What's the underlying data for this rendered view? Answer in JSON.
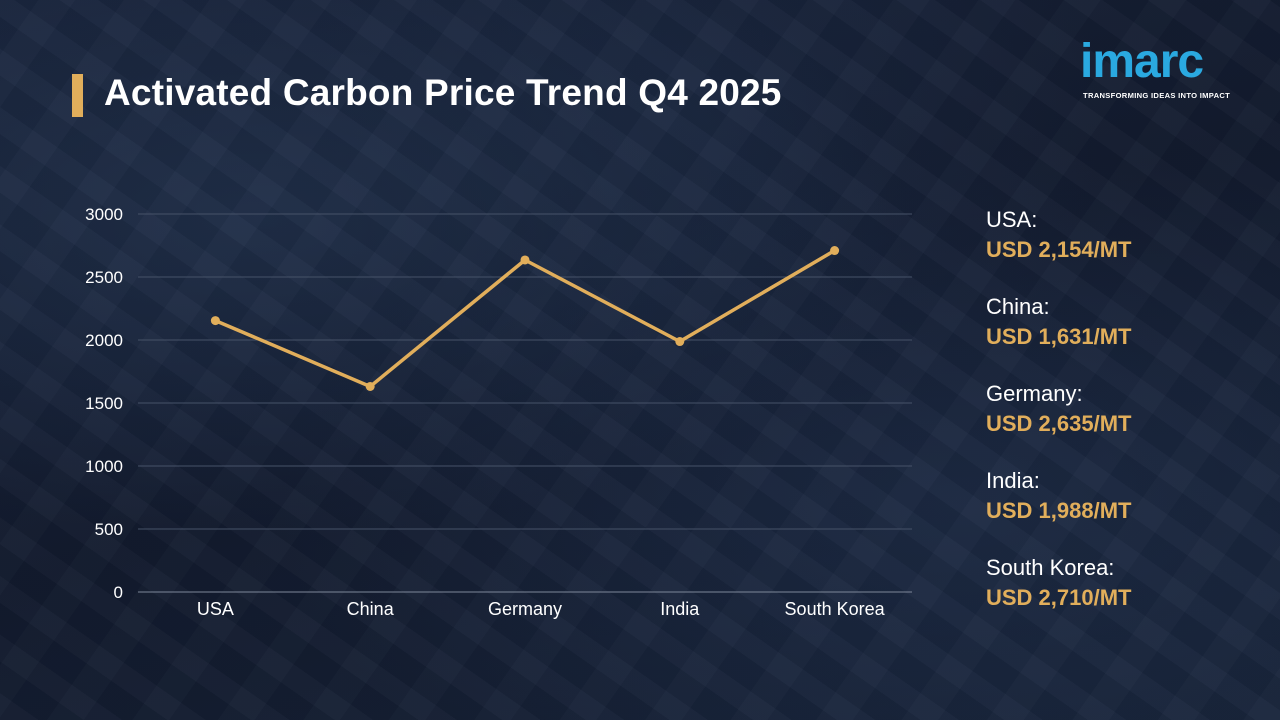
{
  "header": {
    "title": "Activated Carbon Price Trend Q4 2025"
  },
  "logo": {
    "word": "imarc",
    "tagline": "TRANSFORMING IDEAS INTO IMPACT",
    "icon": "imarc-logo"
  },
  "colors": {
    "accent": "#e1ae5b",
    "brand": "#2aa9e0",
    "background": "#151f33",
    "text": "#ffffff"
  },
  "chart_data": {
    "type": "line",
    "title": "",
    "xlabel": "",
    "ylabel": "",
    "categories": [
      "USA",
      "China",
      "Germany",
      "India",
      "South Korea"
    ],
    "series": [
      {
        "values": [
          2154,
          1631,
          2635,
          1988,
          2710
        ]
      }
    ],
    "ylim": [
      0,
      3000
    ],
    "yticks": [
      0,
      500,
      1000,
      1500,
      2000,
      2500,
      3000
    ],
    "grid": true,
    "legend": "none"
  },
  "legend": {
    "items": [
      {
        "country": "USA:",
        "price": "USD 2,154/MT"
      },
      {
        "country": "China:",
        "price": "USD 1,631/MT"
      },
      {
        "country": "Germany:",
        "price": "USD 2,635/MT"
      },
      {
        "country": "India:",
        "price": "USD 1,988/MT"
      },
      {
        "country": "South Korea:",
        "price": "USD 2,710/MT"
      }
    ]
  }
}
